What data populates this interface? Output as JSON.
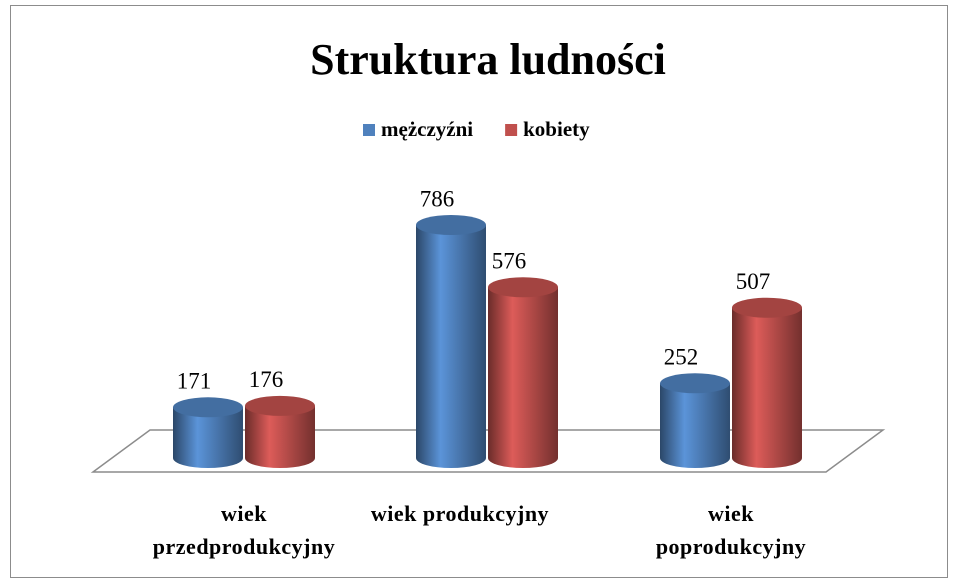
{
  "chart_data": {
    "type": "bar3d",
    "title": "Struktura ludności",
    "categories": [
      [
        "wiek",
        "przedprodukcyjny"
      ],
      [
        "wiek produkcyjny"
      ],
      [
        "wiek",
        "poprodukcyjny"
      ]
    ],
    "series": [
      {
        "name": "mężczyźni",
        "color": "#4f81bd",
        "values": [
          171,
          786,
          252
        ]
      },
      {
        "name": "kobiety",
        "color": "#c0504d",
        "values": [
          176,
          576,
          507
        ]
      }
    ],
    "legend": "top"
  }
}
